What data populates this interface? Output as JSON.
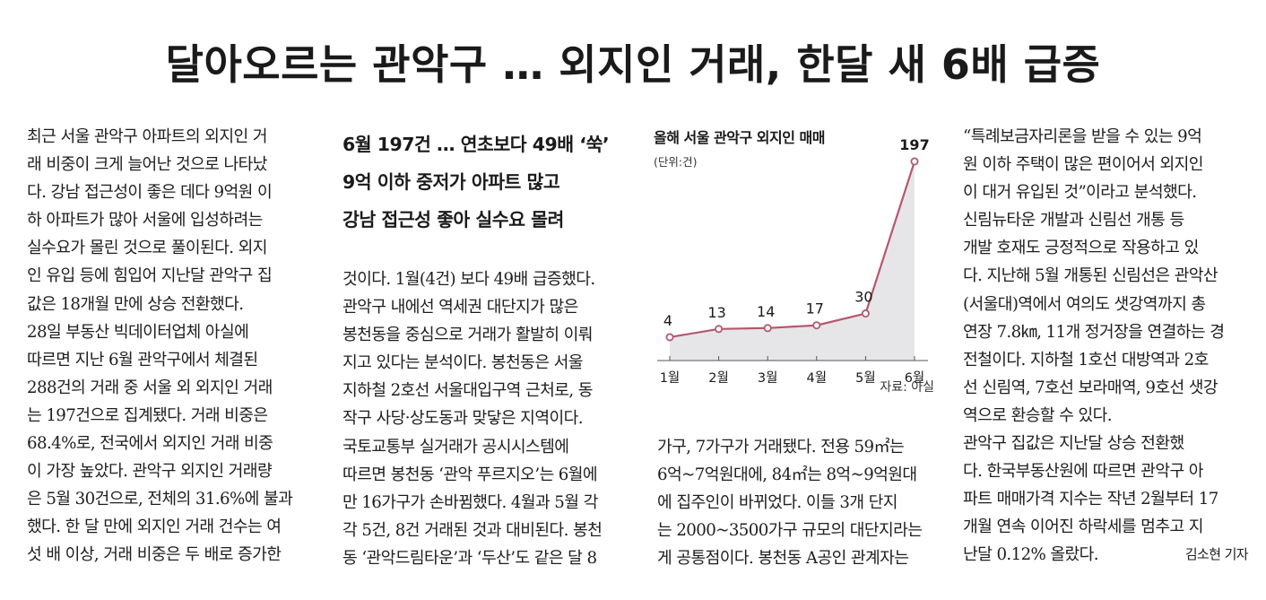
{
  "headline": "달아오르는 관악구 … 외지인 거래, 한달 새 6배 급증",
  "subheadline": [
    "6월 197건 … 연초보다 49배 ‘쑥’",
    "9억 이하 중저가 아파트 많고",
    "강남 접근성 좋아 실수요 몰려"
  ],
  "column1": [
    "최근 서울 관악구 아파트의 외지인 거",
    "래 비중이 크게 늘어난 것으로 나타났",
    "다. 강남 접근성이 좋은 데다 9억원 이",
    "하 아파트가 많아 서울에 입성하려는",
    "실수요가 몰린 것으로 풀이된다. 외지",
    "인 유입 등에 힘입어 지난달 관악구 집",
    "값은 18개월 만에 상승 전환했다.",
    "  28일 부동산 빅데이터업체 아실에",
    "따르면 지난 6월 관악구에서 체결된",
    "288건의 거래 중 서울 외 외지인 거래",
    "는 197건으로 집계됐다. 거래 비중은",
    "68.4%로, 전국에서 외지인 거래 비중",
    "이 가장 높았다. 관악구 외지인 거래량",
    "은 5월 30건으로, 전체의 31.6%에 불과",
    "했다. 한 달 만에 외지인 거래 건수는 여",
    "섯 배 이상, 거래 비중은 두 배로 증가한"
  ],
  "column2": [
    "것이다. 1월(4건) 보다 49배 급증했다.",
    "  관악구 내에선 역세권 대단지가 많은",
    "봉천동을 중심으로 거래가 활발히 이뤄",
    "지고 있다는 분석이다. 봉천동은 서울",
    "지하철 2호선 서울대입구역 근처로, 동",
    "작구 사당·상도동과 맞닿은 지역이다.",
    "  국토교통부 실거래가 공시시스템에",
    "따르면 봉천동 ‘관악 푸르지오’는 6월에",
    "만 16가구가 손바뀜했다. 4월과 5월 각",
    "각 5건, 8건 거래된 것과 대비된다. 봉천",
    "동 ‘관악드림타운’과 ‘두산’도 같은 달 8"
  ],
  "column3": [
    "가구, 7가구가 거래됐다. 전용 59㎡는",
    "6억~7억원대에, 84㎡는 8억~9억원대",
    "에 집주인이 바뀌었다. 이들 3개 단지",
    "는 2000~3500가구 규모의 대단지라는",
    "게 공통점이다. 봉천동 A공인 관계자는"
  ],
  "column4": [
    "“특례보금자리론을 받을 수 있는 9억",
    "원 이하 주택이 많은 편이어서 외지인",
    "이 대거 유입된 것”이라고 분석했다.",
    "  신림뉴타운 개발과 신림선 개통 등",
    "개발 호재도 긍정적으로 작용하고 있",
    "다. 지난해 5월 개통된 신림선은 관악산",
    "(서울대)역에서 여의도 샛강역까지 총",
    "연장 7.8㎞, 11개 정거장을 연결하는 경",
    "전철이다. 지하철 1호선 대방역과 2호",
    "선 신림역, 7호선 보라매역, 9호선 샛강",
    "역으로 환승할 수 있다.",
    "  관악구 집값은 지난달 상승 전환했",
    "다. 한국부동산원에 따르면 관악구 아",
    "파트 매매가격 지수는 작년 2월부터 17",
    "개월 연속 이어진 하락세를 멈추고 지"
  ],
  "column4_last": "난달 0.12% 올랐다.",
  "byline": "김소현 기자",
  "chart_data": {
    "type": "area",
    "title": "올해 서울 관악구 외지인 매매",
    "unit": "(단위:건)",
    "source": "자료: 아실",
    "categories": [
      "1월",
      "2월",
      "3월",
      "4월",
      "5월",
      "6월"
    ],
    "values": [
      4,
      13,
      14,
      17,
      30,
      197
    ],
    "value_labels": [
      "4",
      "13",
      "14",
      "17",
      "30",
      "197"
    ],
    "colors": {
      "line": "#b5576e",
      "fill": "#e6e6e8",
      "marker": "#b5576e"
    }
  }
}
